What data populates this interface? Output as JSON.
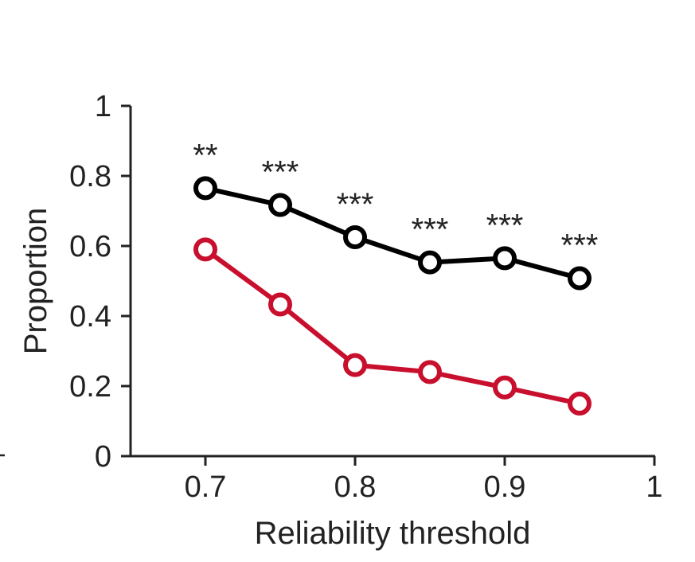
{
  "chart_data": {
    "type": "line",
    "title": "",
    "xlabel": "Reliability threshold",
    "ylabel": "Proportion",
    "xlim": [
      0.65,
      1.0
    ],
    "ylim": [
      0,
      1
    ],
    "xticks": [
      0.7,
      0.8,
      0.9,
      1
    ],
    "xtick_labels": [
      "0.7",
      "0.8",
      "0.9",
      "1"
    ],
    "yticks": [
      0,
      0.2,
      0.4,
      0.6,
      0.8,
      1
    ],
    "ytick_labels": [
      "0",
      "0.2",
      "0.4",
      "0.6",
      "0.8",
      "1"
    ],
    "grid": false,
    "legend": "none",
    "x": [
      0.7,
      0.75,
      0.8,
      0.85,
      0.9,
      0.95
    ],
    "series": [
      {
        "color": "#000000",
        "values": [
          0.765,
          0.717,
          0.625,
          0.553,
          0.565,
          0.508
        ]
      },
      {
        "color": "#c8102e",
        "values": [
          0.59,
          0.433,
          0.26,
          0.24,
          0.196,
          0.15
        ]
      }
    ],
    "annotations": [
      {
        "x": 0.7,
        "y": 0.765,
        "text": "**"
      },
      {
        "x": 0.75,
        "y": 0.717,
        "text": "***"
      },
      {
        "x": 0.8,
        "y": 0.625,
        "text": "***"
      },
      {
        "x": 0.85,
        "y": 0.553,
        "text": "***"
      },
      {
        "x": 0.9,
        "y": 0.565,
        "text": "***"
      },
      {
        "x": 0.95,
        "y": 0.508,
        "text": "***"
      }
    ]
  }
}
